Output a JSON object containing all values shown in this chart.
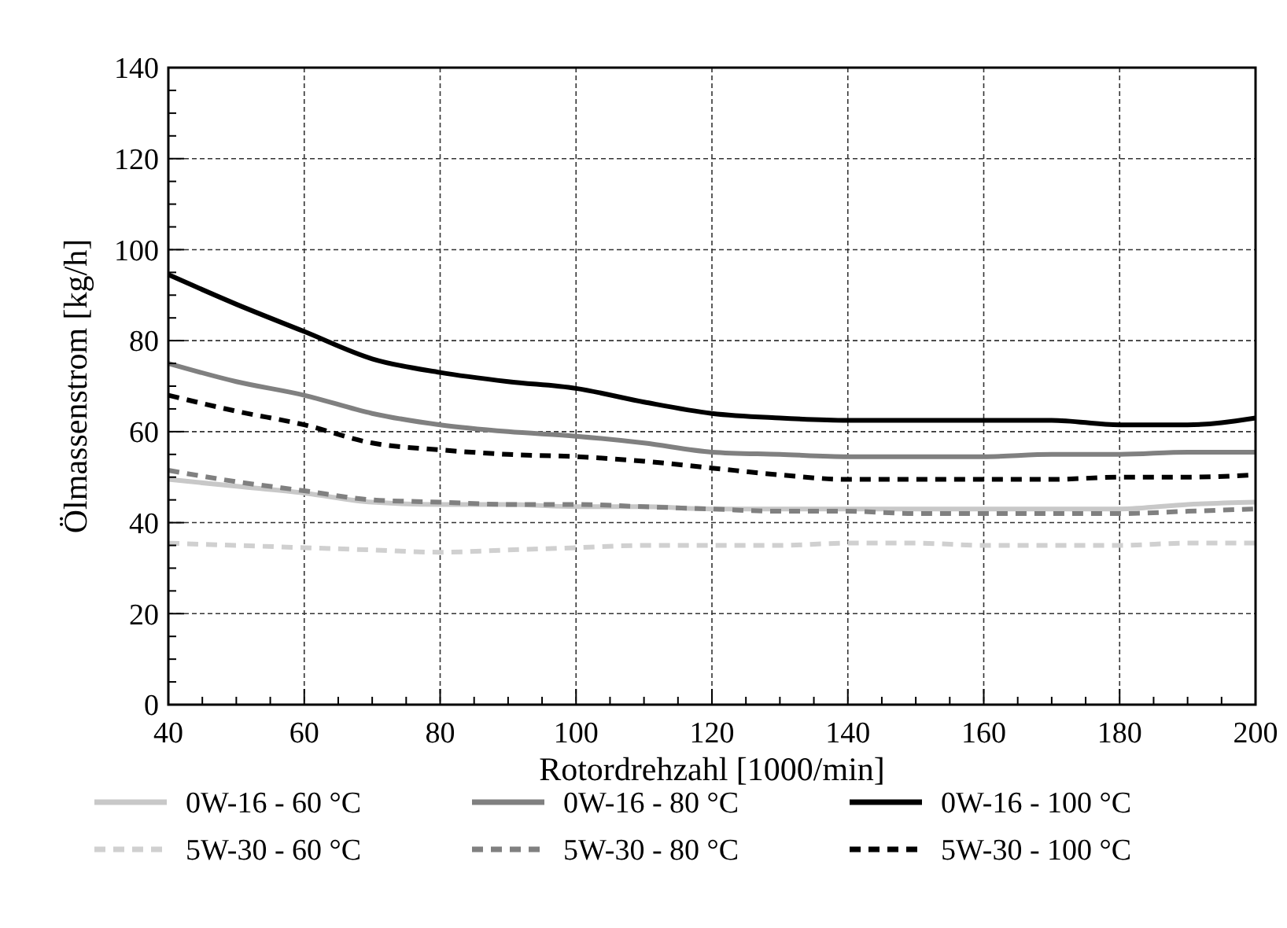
{
  "chart_data": {
    "type": "line",
    "xlabel": "Rotordrehzahl [1000/min]",
    "ylabel": "Ölmassenstrom [kg/h]",
    "x": [
      40,
      50,
      60,
      70,
      80,
      90,
      100,
      110,
      120,
      130,
      140,
      150,
      160,
      170,
      180,
      190,
      200
    ],
    "xlim": [
      40,
      200
    ],
    "ylim": [
      0,
      140
    ],
    "xticks": [
      40,
      {
        "value": 45,
        "label": null
      },
      {
        "value": 50,
        "label": null
      },
      {
        "value": 55,
        "label": null
      },
      60,
      {
        "value": 65,
        "label": null
      },
      {
        "value": 70,
        "label": null
      },
      {
        "value": 75,
        "label": null
      },
      80,
      {
        "value": 85,
        "label": null
      },
      {
        "value": 90,
        "label": null
      },
      {
        "value": 95,
        "label": null
      },
      100,
      {
        "value": 105,
        "label": null
      },
      {
        "value": 110,
        "label": null
      },
      {
        "value": 115,
        "label": null
      },
      120,
      {
        "value": 125,
        "label": null
      },
      {
        "value": 130,
        "label": null
      },
      {
        "value": 135,
        "label": null
      },
      140,
      {
        "value": 145,
        "label": null
      },
      {
        "value": 150,
        "label": null
      },
      {
        "value": 155,
        "label": null
      },
      160,
      {
        "value": 165,
        "label": null
      },
      {
        "value": 170,
        "label": null
      },
      {
        "value": 175,
        "label": null
      },
      180,
      {
        "value": 185,
        "label": null
      },
      {
        "value": 190,
        "label": null
      },
      {
        "value": 195,
        "label": null
      },
      200
    ],
    "yticks": [
      0,
      {
        "value": 5,
        "label": null
      },
      {
        "value": 10,
        "label": null
      },
      {
        "value": 15,
        "label": null
      },
      20,
      {
        "value": 25,
        "label": null
      },
      {
        "value": 30,
        "label": null
      },
      {
        "value": 35,
        "label": null
      },
      40,
      {
        "value": 45,
        "label": null
      },
      {
        "value": 50,
        "label": null
      },
      {
        "value": 55,
        "label": null
      },
      60,
      {
        "value": 65,
        "label": null
      },
      {
        "value": 70,
        "label": null
      },
      {
        "value": 75,
        "label": null
      },
      80,
      {
        "value": 85,
        "label": null
      },
      {
        "value": 90,
        "label": null
      },
      {
        "value": 95,
        "label": null
      },
      100,
      {
        "value": 105,
        "label": null
      },
      {
        "value": 110,
        "label": null
      },
      {
        "value": 115,
        "label": null
      },
      120,
      {
        "value": 125,
        "label": null
      },
      {
        "value": 130,
        "label": null
      },
      {
        "value": 135,
        "label": null
      },
      140
    ],
    "grid": true,
    "legend": "bottom",
    "series": [
      {
        "name": "0W-16 - 60 °C",
        "color": "#c8c8c8",
        "line_style": "solid",
        "values": [
          49.5,
          48,
          46.5,
          44.5,
          44,
          44,
          43.5,
          43.5,
          43,
          43,
          43,
          43,
          43,
          43,
          43,
          44,
          44.5
        ]
      },
      {
        "name": "0W-16 - 80 °C",
        "color": "#808080",
        "line_style": "solid",
        "values": [
          75,
          71,
          68,
          64,
          61.5,
          60,
          59,
          57.5,
          55.5,
          55,
          54.5,
          54.5,
          54.5,
          55,
          55,
          55.5,
          55.5
        ]
      },
      {
        "name": "0W-16 - 100 °C",
        "color": "#000000",
        "line_style": "solid",
        "values": [
          94.5,
          88,
          82,
          76,
          73,
          71,
          69.5,
          66.5,
          64,
          63,
          62.5,
          62.5,
          62.5,
          62.5,
          61.5,
          61.5,
          63
        ]
      },
      {
        "name": "5W-30 - 60 °C",
        "color": "#d0d0d0",
        "line_style": "dashed",
        "values": [
          35.5,
          35,
          34.5,
          34,
          33.5,
          34,
          34.5,
          35,
          35,
          35,
          35.5,
          35.5,
          35,
          35,
          35,
          35.5,
          35.5
        ]
      },
      {
        "name": "5W-30 - 80 °C",
        "color": "#808080",
        "line_style": "dashed",
        "values": [
          51.5,
          49,
          47,
          45,
          44.5,
          44,
          44,
          43.5,
          43,
          42.5,
          42.5,
          42,
          42,
          42,
          42,
          42.5,
          43
        ]
      },
      {
        "name": "5W-30 - 100 °C",
        "color": "#000000",
        "line_style": "dashed",
        "values": [
          68,
          64.5,
          61.5,
          57.5,
          56,
          55,
          54.5,
          53.5,
          52,
          50.5,
          49.5,
          49.5,
          49.5,
          49.5,
          50,
          50,
          50.5
        ]
      }
    ]
  }
}
